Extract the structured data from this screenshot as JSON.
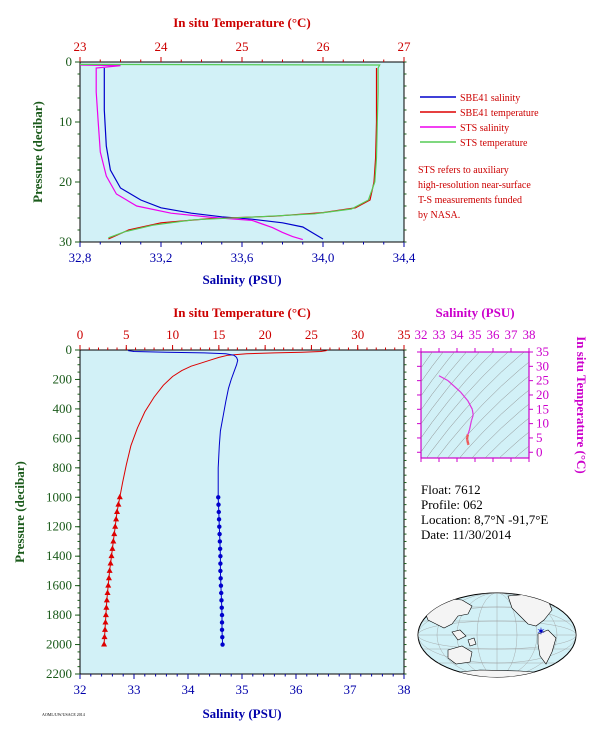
{
  "colors": {
    "panel_bg": "#d2f1f7",
    "temp_axis": "#cc0000",
    "sal_axis": "#0000aa",
    "pressure_axis": "#1a5a1a",
    "ts_axis": "#cc00cc",
    "sbe_salinity": "#0000cc",
    "sbe_temperature": "#dd0000",
    "sts_salinity": "#ee00ee",
    "sts_temperature": "#55cc55"
  },
  "chart_data": [
    {
      "type": "line",
      "panel": "surface",
      "top_axis_label": "In situ Temperature (°C)",
      "bottom_axis_label": "Salinity (PSU)",
      "ylabel": "Pressure (decibar)",
      "top_ticks": [
        "23",
        "24",
        "25",
        "26",
        "27"
      ],
      "bottom_ticks": [
        "32,8",
        "33,2",
        "33,6",
        "34,0",
        "34,4"
      ],
      "y_ticks": [
        "0",
        "10",
        "20",
        "30"
      ],
      "temp_range": [
        23,
        27
      ],
      "sal_range": [
        32.8,
        34.4
      ],
      "ylim": [
        0,
        30
      ],
      "legend": [
        {
          "name": "SBE41 salinity",
          "color": "#0000cc"
        },
        {
          "name": "SBE41 temperature",
          "color": "#dd0000"
        },
        {
          "name": "STS salinity",
          "color": "#ee00ee"
        },
        {
          "name": "STS temperature",
          "color": "#55cc55"
        }
      ],
      "note": [
        "STS refers to auxiliary",
        "high-resolution near-surface",
        "T-S measurements funded",
        "by NASA."
      ],
      "series": [
        {
          "name": "SBE41 salinity",
          "axis": "salinity",
          "color": "#0000cc",
          "points": [
            [
              32.92,
              1
            ],
            [
              32.92,
              3
            ],
            [
              32.92,
              8
            ],
            [
              32.93,
              14
            ],
            [
              32.95,
              18
            ],
            [
              33.0,
              21
            ],
            [
              33.1,
              23
            ],
            [
              33.2,
              24.3
            ],
            [
              33.35,
              25.2
            ],
            [
              33.5,
              25.8
            ],
            [
              33.65,
              26.2
            ],
            [
              33.8,
              26.8
            ],
            [
              33.9,
              27.5
            ],
            [
              33.95,
              28.5
            ],
            [
              34.0,
              29.5
            ]
          ]
        },
        {
          "name": "SBE41 temperature",
          "axis": "temperature",
          "color": "#dd0000",
          "points": [
            [
              26.66,
              1
            ],
            [
              26.66,
              3
            ],
            [
              26.66,
              10
            ],
            [
              26.65,
              16
            ],
            [
              26.63,
              20
            ],
            [
              26.58,
              23
            ],
            [
              26.4,
              24.3
            ],
            [
              26.0,
              25.1
            ],
            [
              25.4,
              25.7
            ],
            [
              24.6,
              26.1
            ],
            [
              24.0,
              26.8
            ],
            [
              23.6,
              28.0
            ],
            [
              23.35,
              29.5
            ]
          ]
        },
        {
          "name": "STS salinity",
          "axis": "salinity",
          "color": "#ee00ee",
          "points": [
            [
              32.8,
              0.5
            ],
            [
              33.0,
              0.6
            ],
            [
              32.88,
              1
            ],
            [
              32.88,
              5
            ],
            [
              32.89,
              10
            ],
            [
              32.9,
              15
            ],
            [
              32.93,
              19
            ],
            [
              32.98,
              22
            ],
            [
              33.08,
              24
            ],
            [
              33.25,
              25.2
            ],
            [
              33.45,
              25.9
            ],
            [
              33.65,
              26.4
            ],
            [
              33.7,
              27.0
            ],
            [
              33.75,
              27.6
            ],
            [
              33.8,
              28.4
            ],
            [
              33.85,
              29.1
            ],
            [
              33.9,
              29.6
            ]
          ]
        },
        {
          "name": "STS temperature",
          "axis": "temperature",
          "color": "#55cc55",
          "points": [
            [
              23.0,
              0.4
            ],
            [
              26.7,
              0.5
            ],
            [
              26.68,
              1
            ],
            [
              26.68,
              5
            ],
            [
              26.67,
              10
            ],
            [
              26.66,
              16
            ],
            [
              26.64,
              20
            ],
            [
              26.56,
              23
            ],
            [
              26.35,
              24.5
            ],
            [
              25.9,
              25.3
            ],
            [
              25.2,
              25.8
            ],
            [
              24.4,
              26.3
            ],
            [
              23.9,
              27.2
            ],
            [
              23.55,
              28.3
            ],
            [
              23.35,
              29.3
            ]
          ]
        }
      ]
    },
    {
      "type": "line",
      "panel": "full-profile",
      "top_axis_label": "In situ Temperature (°C)",
      "bottom_axis_label": "Salinity (PSU)",
      "ylabel": "Pressure (decibar)",
      "top_ticks": [
        "0",
        "5",
        "10",
        "15",
        "20",
        "25",
        "30",
        "35"
      ],
      "bottom_ticks": [
        "32",
        "33",
        "34",
        "35",
        "36",
        "37",
        "38"
      ],
      "y_ticks": [
        "0",
        "200",
        "400",
        "600",
        "800",
        "1000",
        "1200",
        "1400",
        "1600",
        "1800",
        "2000",
        "2200"
      ],
      "temp_range": [
        0,
        35
      ],
      "sal_range": [
        32,
        38
      ],
      "ylim": [
        0,
        2200
      ],
      "series": [
        {
          "name": "Temperature",
          "axis": "temperature",
          "color": "#dd0000",
          "points": [
            [
              26.7,
              1
            ],
            [
              26.6,
              5
            ],
            [
              26.0,
              10
            ],
            [
              24.0,
              15
            ],
            [
              21.0,
              20
            ],
            [
              18.0,
              25
            ],
            [
              16.0,
              35
            ],
            [
              15.0,
              50
            ],
            [
              14.0,
              70
            ],
            [
              13.0,
              90
            ],
            [
              12.0,
              110
            ],
            [
              11.0,
              140
            ],
            [
              10.0,
              180
            ],
            [
              9.0,
              240
            ],
            [
              8.0,
              320
            ],
            [
              7.0,
              420
            ],
            [
              6.2,
              530
            ],
            [
              5.5,
              650
            ],
            [
              5.0,
              780
            ],
            [
              4.6,
              900
            ],
            [
              4.3,
              1000
            ],
            [
              4.0,
              1100
            ],
            [
              3.8,
              1200
            ],
            [
              3.6,
              1300
            ],
            [
              3.4,
              1400
            ],
            [
              3.2,
              1500
            ],
            [
              3.05,
              1600
            ],
            [
              2.9,
              1700
            ],
            [
              2.8,
              1800
            ],
            [
              2.7,
              1900
            ],
            [
              2.6,
              2000
            ]
          ]
        },
        {
          "name": "Salinity",
          "axis": "salinity",
          "color": "#0000cc",
          "points": [
            [
              32.9,
              1
            ],
            [
              32.9,
              5
            ],
            [
              33.0,
              10
            ],
            [
              33.6,
              15
            ],
            [
              34.3,
              20
            ],
            [
              34.7,
              25
            ],
            [
              34.85,
              35
            ],
            [
              34.9,
              50
            ],
            [
              34.92,
              70
            ],
            [
              34.9,
              100
            ],
            [
              34.85,
              150
            ],
            [
              34.8,
              200
            ],
            [
              34.75,
              260
            ],
            [
              34.7,
              350
            ],
            [
              34.65,
              450
            ],
            [
              34.6,
              550
            ],
            [
              34.58,
              650
            ],
            [
              34.56,
              800
            ],
            [
              34.56,
              1000
            ],
            [
              34.57,
              1100
            ],
            [
              34.58,
              1200
            ],
            [
              34.59,
              1300
            ],
            [
              34.6,
              1400
            ],
            [
              34.6,
              1500
            ],
            [
              34.61,
              1600
            ],
            [
              34.62,
              1700
            ],
            [
              34.63,
              1800
            ],
            [
              34.63,
              1900
            ],
            [
              34.64,
              2000
            ]
          ]
        }
      ],
      "marker_levels": [
        1000,
        1050,
        1100,
        1150,
        1200,
        1250,
        1300,
        1350,
        1400,
        1450,
        1500,
        1550,
        1600,
        1650,
        1700,
        1750,
        1800,
        1850,
        1900,
        1950,
        2000
      ]
    },
    {
      "type": "scatter",
      "panel": "ts-diagram",
      "top_axis_label": "Salinity (PSU)",
      "right_axis_label": "In situ Temperature (°C)",
      "top_ticks": [
        "32",
        "33",
        "34",
        "35",
        "36",
        "37",
        "38"
      ],
      "right_ticks": [
        "35",
        "30",
        "25",
        "20",
        "15",
        "10",
        "5",
        "0"
      ],
      "sal_range": [
        32,
        38
      ],
      "temp_range": [
        -2,
        35
      ],
      "grid": "density-contours",
      "points": [
        [
          33.0,
          26.7
        ],
        [
          33.5,
          25.0
        ],
        [
          34.2,
          21.0
        ],
        [
          34.6,
          18.0
        ],
        [
          34.85,
          15.0
        ],
        [
          34.9,
          13.0
        ],
        [
          34.8,
          11.0
        ],
        [
          34.75,
          9.5
        ],
        [
          34.7,
          8.0
        ],
        [
          34.65,
          7.0
        ],
        [
          34.6,
          6.2
        ],
        [
          34.58,
          5.5
        ],
        [
          34.56,
          5.0
        ],
        [
          34.56,
          4.6
        ],
        [
          34.57,
          4.3
        ],
        [
          34.58,
          4.0
        ],
        [
          34.6,
          3.6
        ],
        [
          34.61,
          3.2
        ],
        [
          34.62,
          2.9
        ],
        [
          34.64,
          2.6
        ]
      ]
    }
  ],
  "float_info": {
    "float": "Float: 7612",
    "profile": "Profile: 062",
    "location": "Location: 8,7°N -91,7°E",
    "date": "Date: 11/30/2014"
  },
  "footer_text": "AOML/UW/USACE 2014"
}
